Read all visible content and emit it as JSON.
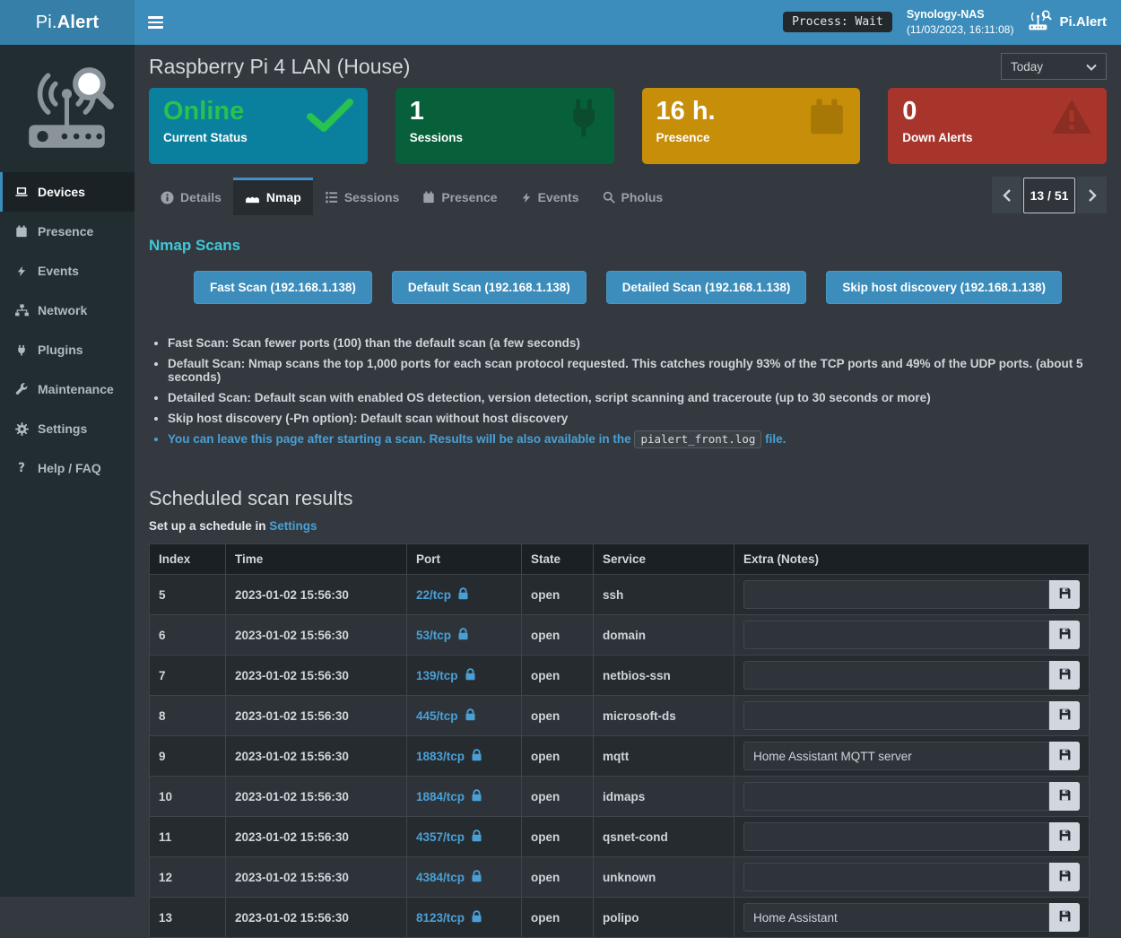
{
  "navbar": {
    "logo_pi": "Pi.",
    "logo_alert": "Alert",
    "process_badge": "Process: Wait",
    "nas_name": "Synology-NAS",
    "nas_time": "(11/03/2023, 16:11:08)",
    "brand": "Pi.Alert"
  },
  "sidebar": {
    "items": [
      {
        "label": "Devices",
        "icon": "laptop-icon",
        "active": true
      },
      {
        "label": "Presence",
        "icon": "calendar-icon",
        "active": false
      },
      {
        "label": "Events",
        "icon": "bolt-icon",
        "active": false
      },
      {
        "label": "Network",
        "icon": "sitemap-icon",
        "active": false
      },
      {
        "label": "Plugins",
        "icon": "plug-icon",
        "active": false
      },
      {
        "label": "Maintenance",
        "icon": "wrench-icon",
        "active": false
      },
      {
        "label": "Settings",
        "icon": "gear-icon",
        "active": false
      },
      {
        "label": "Help / FAQ",
        "icon": "question-icon",
        "active": false
      }
    ]
  },
  "header": {
    "title": "Raspberry Pi 4 LAN (House)",
    "period_select": "Today"
  },
  "cards": [
    {
      "value": "Online",
      "label": "Current Status",
      "bg": "#0b7f9e",
      "value_color": "#27c24f",
      "icon": "check-icon"
    },
    {
      "value": "1",
      "label": "Sessions",
      "bg": "#07603a",
      "value_color": "#ffffff",
      "icon": "plug-big-icon"
    },
    {
      "value": "16 h.",
      "label": "Presence",
      "bg": "#c78e0a",
      "value_color": "#ffffff",
      "icon": "calendar-big-icon"
    },
    {
      "value": "0",
      "label": "Down Alerts",
      "bg": "#a8352b",
      "value_color": "#ffffff",
      "icon": "warning-icon"
    }
  ],
  "tabs": [
    {
      "label": "Details",
      "icon": "info-icon",
      "active": false
    },
    {
      "label": "Nmap",
      "icon": "nmap-icon",
      "active": true
    },
    {
      "label": "Sessions",
      "icon": "list-icon",
      "active": false
    },
    {
      "label": "Presence",
      "icon": "calendar-icon",
      "active": false
    },
    {
      "label": "Events",
      "icon": "bolt-icon",
      "active": false
    },
    {
      "label": "Pholus",
      "icon": "search-icon",
      "active": false
    }
  ],
  "pagination": {
    "current": "13 / 51"
  },
  "nmap": {
    "heading": "Nmap Scans",
    "buttons": [
      "Fast Scan (192.168.1.138)",
      "Default Scan (192.168.1.138)",
      "Detailed Scan (192.168.1.138)",
      "Skip host discovery (192.168.1.138)"
    ],
    "bullets": [
      "Fast Scan: Scan fewer ports (100) than the default scan (a few seconds)",
      "Default Scan: Nmap scans the top 1,000 ports for each scan protocol requested. This catches roughly 93% of the TCP ports and 49% of the UDP ports. (about 5 seconds)",
      "Detailed Scan: Default scan with enabled OS detection, version detection, script scanning and traceroute (up to 30 seconds or more)",
      "Skip host discovery (-Pn option): Default scan without host discovery"
    ],
    "note_prefix": "You can leave this page after starting a scan. Results will be also available in the",
    "note_code": "pialert_front.log",
    "note_suffix": "file."
  },
  "scheduled": {
    "heading": "Scheduled scan results",
    "subtext_prefix": "Set up a schedule in",
    "subtext_link": "Settings"
  },
  "table": {
    "columns": [
      "Index",
      "Time",
      "Port",
      "State",
      "Service",
      "Extra (Notes)"
    ],
    "rows": [
      {
        "index": "5",
        "time": "2023-01-02 15:56:30",
        "port": "22/tcp",
        "state": "open",
        "service": "ssh",
        "notes": ""
      },
      {
        "index": "6",
        "time": "2023-01-02 15:56:30",
        "port": "53/tcp",
        "state": "open",
        "service": "domain",
        "notes": ""
      },
      {
        "index": "7",
        "time": "2023-01-02 15:56:30",
        "port": "139/tcp",
        "state": "open",
        "service": "netbios-ssn",
        "notes": ""
      },
      {
        "index": "8",
        "time": "2023-01-02 15:56:30",
        "port": "445/tcp",
        "state": "open",
        "service": "microsoft-ds",
        "notes": ""
      },
      {
        "index": "9",
        "time": "2023-01-02 15:56:30",
        "port": "1883/tcp",
        "state": "open",
        "service": "mqtt",
        "notes": "Home Assistant MQTT server"
      },
      {
        "index": "10",
        "time": "2023-01-02 15:56:30",
        "port": "1884/tcp",
        "state": "open",
        "service": "idmaps",
        "notes": ""
      },
      {
        "index": "11",
        "time": "2023-01-02 15:56:30",
        "port": "4357/tcp",
        "state": "open",
        "service": "qsnet-cond",
        "notes": ""
      },
      {
        "index": "12",
        "time": "2023-01-02 15:56:30",
        "port": "4384/tcp",
        "state": "open",
        "service": "unknown",
        "notes": ""
      },
      {
        "index": "13",
        "time": "2023-01-02 15:56:30",
        "port": "8123/tcp",
        "state": "open",
        "service": "polipo",
        "notes": "Home Assistant"
      }
    ]
  },
  "colors": {
    "navbar": "#3c8dbc",
    "navbar_logo": "#367fa9",
    "sidebar": "#222d32",
    "content_bg": "#33393f",
    "accent_link": "#4aa0d5",
    "nmap_heading": "#3fc8da",
    "online_green": "#27c24f"
  }
}
